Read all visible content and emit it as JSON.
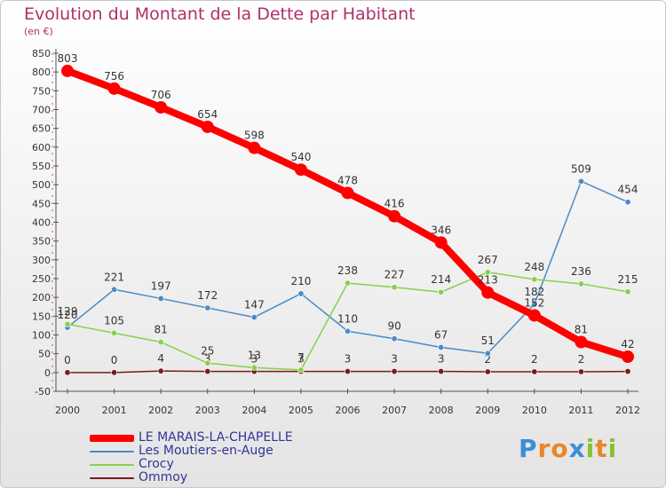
{
  "title": "Evolution du Montant de la Dette par Habitant",
  "subtitle": "(en €)",
  "logo": "Proxiti",
  "chart_data": {
    "type": "line",
    "title": "Evolution du Montant de la Dette par Habitant",
    "ylabel": "(en €)",
    "xlabel": "",
    "x": [
      "2000",
      "2001",
      "2002",
      "2003",
      "2004",
      "2005",
      "2006",
      "2007",
      "2008",
      "2009",
      "2010",
      "2011",
      "2012"
    ],
    "ylim": [
      -50,
      850
    ],
    "yticks": [
      -50,
      0,
      50,
      100,
      150,
      200,
      250,
      300,
      350,
      400,
      450,
      500,
      550,
      600,
      650,
      700,
      750,
      800,
      850
    ],
    "grid": false,
    "legend_position": "bottom-left",
    "series": [
      {
        "name": "LE MARAIS-LA-CHAPELLE",
        "color": "#ff0000",
        "values": [
          803,
          756,
          706,
          654,
          598,
          540,
          478,
          416,
          346,
          213,
          152,
          81,
          42
        ]
      },
      {
        "name": "Les Moutiers-en-Auge",
        "color": "#4a8bc9",
        "values": [
          120,
          221,
          197,
          172,
          147,
          210,
          110,
          90,
          67,
          51,
          182,
          509,
          454
        ]
      },
      {
        "name": "Crocy",
        "color": "#86d14a",
        "values": [
          129,
          105,
          81,
          25,
          13,
          7,
          238,
          227,
          214,
          267,
          248,
          236,
          215
        ]
      },
      {
        "name": "Ommoy",
        "color": "#7a1a1a",
        "values": [
          0,
          0,
          4,
          3,
          3,
          3,
          3,
          3,
          3,
          2,
          2,
          2,
          3
        ]
      }
    ]
  }
}
